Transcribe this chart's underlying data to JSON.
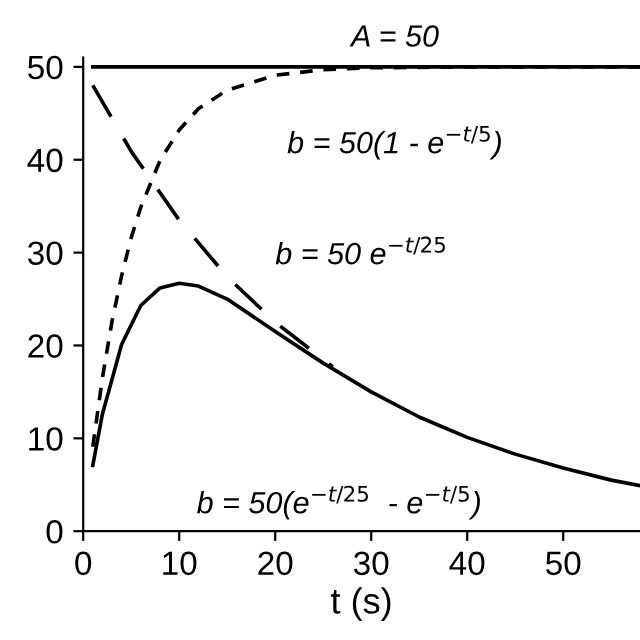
{
  "chart_data": {
    "type": "line",
    "xlabel": "t (s)",
    "xlim": [
      0,
      58
    ],
    "ylim": [
      0,
      51
    ],
    "xticks": [
      0,
      10,
      20,
      30,
      40,
      50
    ],
    "yticks": [
      0,
      10,
      20,
      30,
      40,
      50
    ],
    "grid": false,
    "legend": false,
    "marker": "none",
    "series": [
      {
        "color": "#000000",
        "line_style": "solid",
        "x": [
          1,
          58
        ],
        "values": [
          50,
          50
        ]
      },
      {
        "color": "#000000",
        "line_style": "dotted",
        "x": [
          1,
          2,
          3,
          4,
          5,
          6,
          8,
          10,
          12,
          15,
          20,
          25,
          30,
          40,
          58
        ],
        "values": [
          9.1,
          16.5,
          22.6,
          27.5,
          31.6,
          34.9,
          39.9,
          43.2,
          45.5,
          47.5,
          49.1,
          49.7,
          49.9,
          50,
          50
        ]
      },
      {
        "color": "#000000",
        "line_style": "dashed",
        "x": [
          1,
          5,
          10,
          15,
          20,
          26
        ],
        "values": [
          48.0,
          40.9,
          33.5,
          27.4,
          22.5,
          17.7
        ]
      },
      {
        "color": "#000000",
        "line_style": "solid",
        "x": [
          1,
          2,
          4,
          6,
          8,
          10,
          12,
          15,
          20,
          25,
          30,
          35,
          40,
          45,
          50,
          55,
          58
        ],
        "values": [
          7.1,
          12.6,
          20.1,
          24.3,
          26.2,
          26.7,
          26.4,
          25.0,
          21.5,
          18.1,
          15.0,
          12.3,
          10.1,
          8.3,
          6.8,
          5.5,
          4.9
        ]
      }
    ],
    "annotations": [
      "A = 50",
      "b = 50(1 - e$^{−t/5}$)",
      "b = 50 e$^{−t/25}$",
      "b = 50(e$^{−t/25}$  - e$^{−t/5}$)"
    ]
  }
}
